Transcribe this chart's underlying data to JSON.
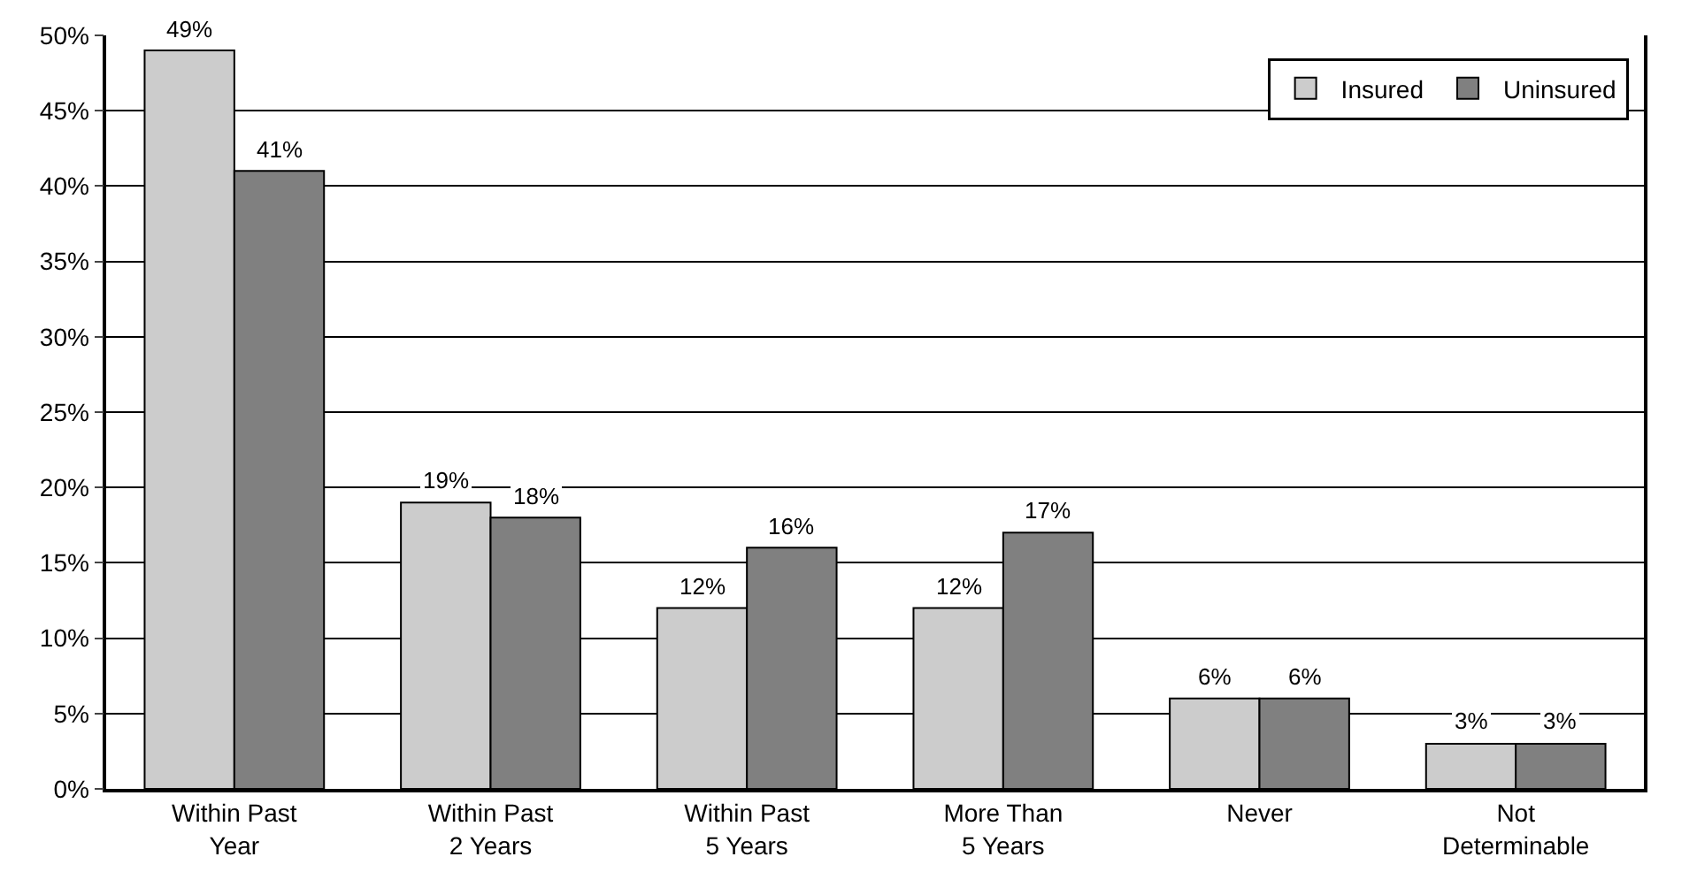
{
  "chart_data": {
    "type": "bar",
    "categories": [
      "Within Past\nYear",
      "Within Past\n2 Years",
      "Within Past\n5 Years",
      "More Than\n5 Years",
      "Never",
      "Not\nDeterminable"
    ],
    "series": [
      {
        "name": "Insured",
        "color": "#cccccc",
        "values": [
          49,
          19,
          12,
          12,
          6,
          3
        ],
        "value_labels": [
          "49%",
          "19%",
          "12%",
          "12%",
          "6%",
          "3%"
        ]
      },
      {
        "name": "Uninsured",
        "color": "#808080",
        "values": [
          41,
          18,
          16,
          17,
          6,
          3
        ],
        "value_labels": [
          "41%",
          "18%",
          "16%",
          "17%",
          "6%",
          "3%"
        ]
      }
    ],
    "ylim": [
      0,
      50
    ],
    "yticks": [
      {
        "value": 0,
        "label": "0%"
      },
      {
        "value": 5,
        "label": "5%"
      },
      {
        "value": 10,
        "label": "10%"
      },
      {
        "value": 15,
        "label": "15%"
      },
      {
        "value": 20,
        "label": "20%"
      },
      {
        "value": 25,
        "label": "25%"
      },
      {
        "value": 30,
        "label": "30%"
      },
      {
        "value": 35,
        "label": "35%"
      },
      {
        "value": 40,
        "label": "40%"
      },
      {
        "value": 45,
        "label": "45%"
      },
      {
        "value": 50,
        "label": "50%"
      }
    ],
    "grid": "y",
    "legend": "top right"
  }
}
